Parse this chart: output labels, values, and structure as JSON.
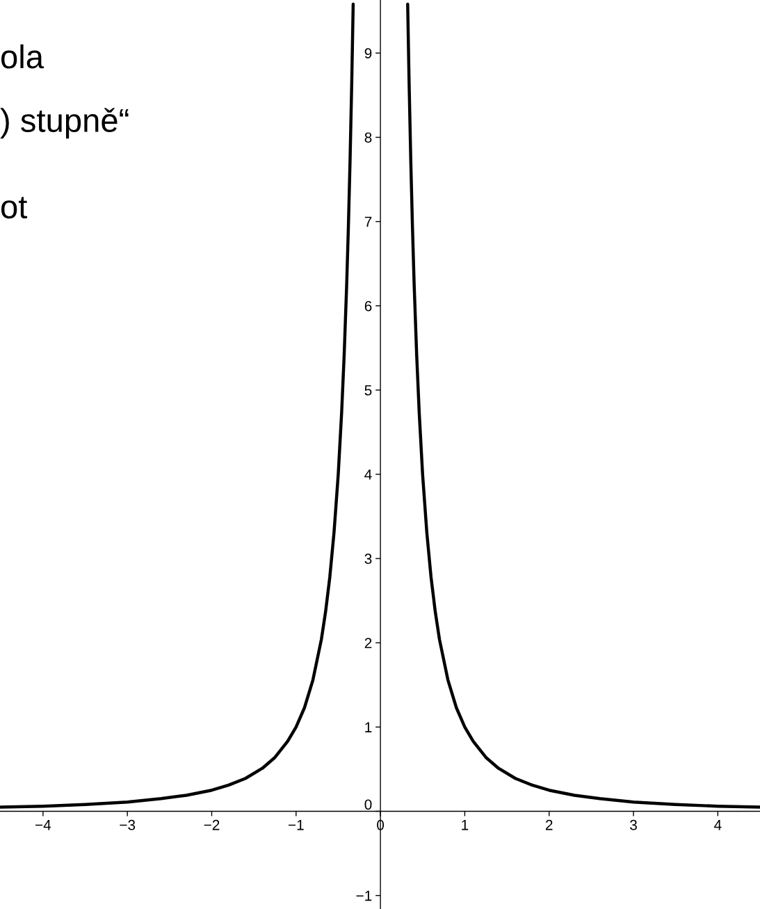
{
  "chart_data": {
    "type": "line",
    "annotations": [
      "ola",
      ") stupně“",
      "ot"
    ],
    "x": [
      -4.5,
      -4,
      -3.5,
      -3,
      -2.6,
      -2.3,
      -2,
      -1.8,
      -1.6,
      -1.4,
      -1.25,
      -1.1,
      -1,
      -0.9,
      -0.8,
      -0.7,
      -0.65,
      -0.6,
      -0.55,
      -0.5,
      -0.46,
      -0.43,
      -0.4,
      -0.38,
      -0.36,
      -0.34,
      -0.323,
      0,
      0.323,
      0.34,
      0.36,
      0.38,
      0.4,
      0.43,
      0.46,
      0.5,
      0.55,
      0.6,
      0.65,
      0.7,
      0.8,
      0.9,
      1,
      1.1,
      1.25,
      1.4,
      1.6,
      1.8,
      2,
      2.3,
      2.6,
      3,
      3.5,
      4,
      4.5
    ],
    "series": [
      {
        "color": "#000000",
        "values": [
          0.05,
          0.06,
          0.08,
          0.11,
          0.15,
          0.19,
          0.25,
          0.31,
          0.39,
          0.51,
          0.64,
          0.83,
          1,
          1.23,
          1.56,
          2.04,
          2.37,
          2.78,
          3.31,
          4,
          4.73,
          5.41,
          6.25,
          6.93,
          7.72,
          8.65,
          9.58,
          null,
          9.58,
          8.65,
          7.72,
          6.93,
          6.25,
          5.41,
          4.73,
          4,
          3.31,
          2.78,
          2.37,
          2.04,
          1.56,
          1.23,
          1,
          0.83,
          0.64,
          0.51,
          0.39,
          0.31,
          0.25,
          0.19,
          0.15,
          0.11,
          0.08,
          0.06,
          0.05
        ]
      }
    ],
    "xlim": [
      -4.51,
      4.5
    ],
    "ylim": [
      -1.16,
      9.63
    ],
    "xticks": [
      -4,
      -3,
      -2,
      -1,
      0,
      1,
      2,
      3,
      4
    ],
    "yticks": [
      -1,
      0,
      1,
      2,
      3,
      4,
      5,
      6,
      7,
      8,
      9
    ]
  }
}
